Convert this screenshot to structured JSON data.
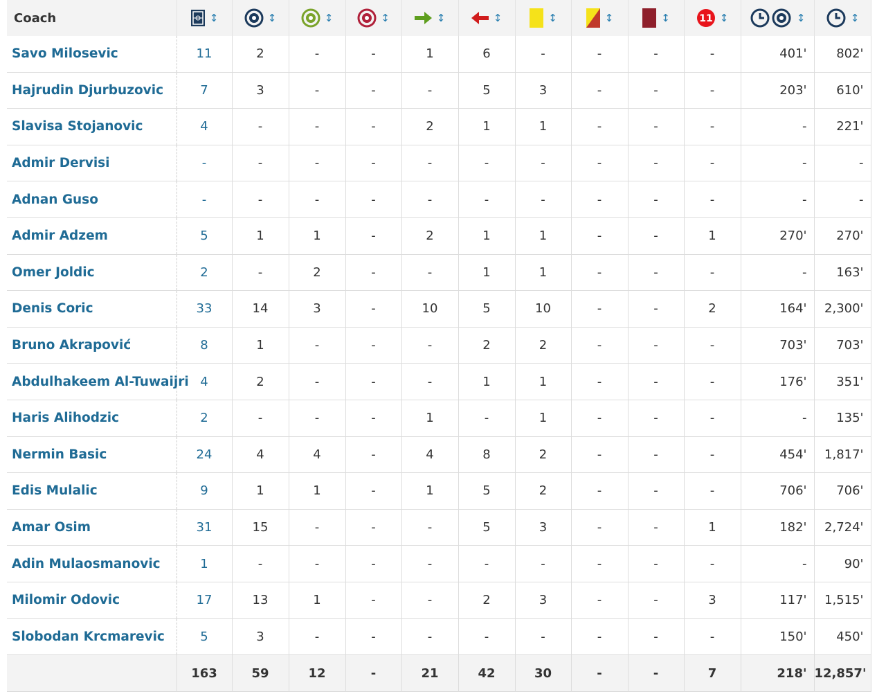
{
  "header": {
    "coach_label": "Coach",
    "icon_text": "11"
  },
  "rows": [
    {
      "name": "Savo Milosevic",
      "values": [
        "11",
        "2",
        "-",
        "-",
        "1",
        "6",
        "-",
        "-",
        "-",
        "-",
        "401'",
        "802'"
      ]
    },
    {
      "name": "Hajrudin Djurbuzovic",
      "values": [
        "7",
        "3",
        "-",
        "-",
        "-",
        "5",
        "3",
        "-",
        "-",
        "-",
        "203'",
        "610'"
      ]
    },
    {
      "name": "Slavisa Stojanovic",
      "values": [
        "4",
        "-",
        "-",
        "-",
        "2",
        "1",
        "1",
        "-",
        "-",
        "-",
        "-",
        "221'"
      ]
    },
    {
      "name": "Admir Dervisi",
      "values": [
        "-",
        "-",
        "-",
        "-",
        "-",
        "-",
        "-",
        "-",
        "-",
        "-",
        "-",
        "-"
      ]
    },
    {
      "name": "Adnan Guso",
      "values": [
        "-",
        "-",
        "-",
        "-",
        "-",
        "-",
        "-",
        "-",
        "-",
        "-",
        "-",
        "-"
      ]
    },
    {
      "name": "Admir Adzem",
      "values": [
        "5",
        "1",
        "1",
        "-",
        "2",
        "1",
        "1",
        "-",
        "-",
        "1",
        "270'",
        "270'"
      ]
    },
    {
      "name": "Omer Joldic",
      "values": [
        "2",
        "-",
        "2",
        "-",
        "-",
        "1",
        "1",
        "-",
        "-",
        "-",
        "-",
        "163'"
      ]
    },
    {
      "name": "Denis Coric",
      "values": [
        "33",
        "14",
        "3",
        "-",
        "10",
        "5",
        "10",
        "-",
        "-",
        "2",
        "164'",
        "2,300'"
      ]
    },
    {
      "name": "Bruno Akrapović",
      "values": [
        "8",
        "1",
        "-",
        "-",
        "-",
        "2",
        "2",
        "-",
        "-",
        "-",
        "703'",
        "703'"
      ]
    },
    {
      "name": "Abdulhakeem Al-Tuwaijri",
      "values": [
        "4",
        "2",
        "-",
        "-",
        "-",
        "1",
        "1",
        "-",
        "-",
        "-",
        "176'",
        "351'"
      ]
    },
    {
      "name": "Haris Alihodzic",
      "values": [
        "2",
        "-",
        "-",
        "-",
        "1",
        "-",
        "1",
        "-",
        "-",
        "-",
        "-",
        "135'"
      ]
    },
    {
      "name": "Nermin Basic",
      "values": [
        "24",
        "4",
        "4",
        "-",
        "4",
        "8",
        "2",
        "-",
        "-",
        "-",
        "454'",
        "1,817'"
      ]
    },
    {
      "name": "Edis Mulalic",
      "values": [
        "9",
        "1",
        "1",
        "-",
        "1",
        "5",
        "2",
        "-",
        "-",
        "-",
        "706'",
        "706'"
      ]
    },
    {
      "name": "Amar Osim",
      "values": [
        "31",
        "15",
        "-",
        "-",
        "-",
        "5",
        "3",
        "-",
        "-",
        "1",
        "182'",
        "2,724'"
      ]
    },
    {
      "name": "Adin Mulaosmanovic",
      "values": [
        "1",
        "-",
        "-",
        "-",
        "-",
        "-",
        "-",
        "-",
        "-",
        "-",
        "-",
        "90'"
      ]
    },
    {
      "name": "Milomir Odovic",
      "values": [
        "17",
        "13",
        "1",
        "-",
        "-",
        "2",
        "3",
        "-",
        "-",
        "3",
        "117'",
        "1,515'"
      ]
    },
    {
      "name": "Slobodan Krcmarevic",
      "values": [
        "5",
        "3",
        "-",
        "-",
        "-",
        "-",
        "-",
        "-",
        "-",
        "-",
        "150'",
        "450'"
      ]
    }
  ],
  "totals": [
    "163",
    "59",
    "12",
    "-",
    "21",
    "42",
    "30",
    "-",
    "-",
    "7",
    "218'",
    "12,857'"
  ]
}
